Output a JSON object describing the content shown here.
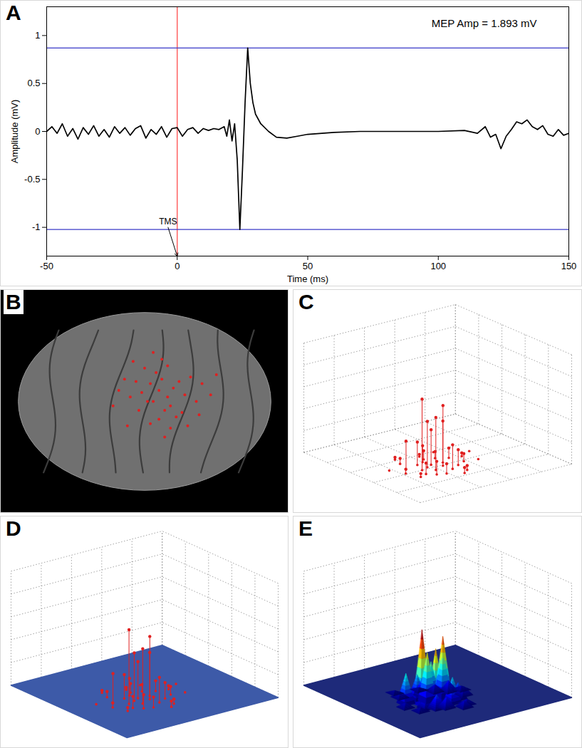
{
  "chart_data": [
    {
      "panel_label": "A",
      "type": "line",
      "title": "MEP Amp = 1.893 mV",
      "x_label": "Time (ms)",
      "y_label": "Amplitude (mV)",
      "x": [
        -50,
        -48,
        -46,
        -44,
        -42,
        -40,
        -38,
        -36,
        -34,
        -32,
        -30,
        -28,
        -26,
        -24,
        -22,
        -20,
        -18,
        -16,
        -14,
        -12,
        -10,
        -8,
        -6,
        -4,
        -2,
        0,
        2,
        4,
        6,
        8,
        10,
        12,
        14,
        16,
        18,
        19,
        20,
        21,
        22,
        23,
        24,
        25,
        26,
        27,
        28,
        29,
        30,
        32,
        35,
        38,
        42,
        46,
        50,
        60,
        70,
        80,
        90,
        100,
        110,
        115,
        118,
        120,
        122,
        124,
        126,
        128,
        130,
        132,
        134,
        136,
        138,
        140,
        142,
        144,
        146,
        148,
        150
      ],
      "values": [
        0,
        0.05,
        -0.02,
        0.08,
        -0.05,
        0.03,
        -0.08,
        0.04,
        -0.03,
        0.06,
        -0.05,
        0.02,
        -0.06,
        0.05,
        -0.02,
        0.04,
        -0.04,
        0.03,
        0.06,
        -0.07,
        0.02,
        -0.03,
        0.05,
        -0.06,
        0.03,
        0.04,
        -0.05,
        0.02,
        0.04,
        -0.02,
        0.03,
        0.01,
        0.03,
        0.02,
        0.05,
        -0.05,
        0.12,
        -0.1,
        0.08,
        -0.3,
        -1.023,
        -0.4,
        0.3,
        0.87,
        0.5,
        0.3,
        0.18,
        0.08,
        0,
        -0.06,
        -0.07,
        -0.05,
        -0.03,
        -0.01,
        0,
        0,
        0,
        0,
        0.01,
        -0.02,
        0.05,
        -0.06,
        -0.03,
        -0.18,
        -0.05,
        0.02,
        0.1,
        0.08,
        0.12,
        0.05,
        0.02,
        0.06,
        -0.03,
        -0.05,
        0.02,
        -0.04,
        -0.02
      ],
      "color": "#000000",
      "xlim": [
        -50,
        150
      ],
      "ylim": [
        -1.3,
        1.3
      ],
      "xticks": [
        -50,
        0,
        50,
        100,
        150
      ],
      "yticks": [
        -1,
        -0.5,
        0,
        0.5,
        1
      ],
      "hlines": {
        "values": [
          0.87,
          -1.023
        ],
        "color": "#3a3ac8"
      },
      "vlines": {
        "values": [
          0
        ],
        "color": "#ff6a6a"
      },
      "annotations": [
        {
          "text": "TMS",
          "x": 0,
          "y": -1.3
        }
      ]
    },
    {
      "panel_label": "B",
      "type": "brain_map",
      "x": [
        5.5,
        5.8,
        5.2,
        6.0,
        5.6,
        5.3,
        5.9,
        6.2,
        4.9,
        5.4,
        5.7,
        6.4,
        5.1,
        4.7,
        6.6,
        5.0,
        6.1,
        5.5,
        4.5,
        6.8,
        5.8,
        4.3,
        6.3,
        5.2,
        7.0,
        4.8,
        5.6,
        6.9,
        4.1,
        7.3,
        5.9,
        4.6,
        6.5,
        5.3,
        3.9,
        7.5,
        5.7,
        4.4
      ],
      "y": [
        5.5,
        5.2,
        5.8,
        5.6,
        6.0,
        5.0,
        4.8,
        5.9,
        5.4,
        6.3,
        4.6,
        5.3,
        5.0,
        5.9,
        6.1,
        6.5,
        4.3,
        4.2,
        5.2,
        5.0,
        6.6,
        6.0,
        4.5,
        4.0,
        5.8,
        4.6,
        6.9,
        4.4,
        5.5,
        5.3,
        3.8,
        6.8,
        3.9,
        7.2,
        4.8,
        6.2,
        3.4,
        3.9
      ],
      "color": "#e02020",
      "xlim": [
        0,
        10
      ],
      "ylim": [
        0,
        10
      ],
      "tick_labels": false
    },
    {
      "panel_label": "C",
      "type": "stem3d",
      "x": [
        3.2,
        3.8,
        4.1,
        4.5,
        3.5,
        4.0,
        4.8,
        3.0,
        2.6,
        5.2,
        4.3,
        3.7,
        4.6,
        5.5,
        2.9,
        3.4,
        4.9,
        5.8,
        2.2,
        6.2,
        3.9,
        4.4,
        5.1,
        2.5,
        6.6,
        1.8,
        7.0,
        3.1,
        4.7,
        5.4
      ],
      "y": [
        4.0,
        3.6,
        4.4,
        3.9,
        4.8,
        5.0,
        4.3,
        3.4,
        4.6,
        3.5,
        5.3,
        4.2,
        3.2,
        4.7,
        5.5,
        3.0,
        5.1,
        3.8,
        4.1,
        4.5,
        2.8,
        5.8,
        2.6,
        3.2,
        3.6,
        5.0,
        4.9,
        6.2,
        2.3,
        5.9
      ],
      "z": [
        6.5,
        4.8,
        3.2,
        5.5,
        2.1,
        1.5,
        3.8,
        1.0,
        2.6,
        1.4,
        0.8,
        4.2,
        2.2,
        0.9,
        0.5,
        1.2,
        0.6,
        0.7,
        0.4,
        0.3,
        0.9,
        0.2,
        0.4,
        0.3,
        0,
        0,
        0,
        0.2,
        0.5,
        0
      ],
      "color": "#e02020",
      "xlim": [
        0,
        10
      ],
      "ylim": [
        0,
        10
      ],
      "zlim": [
        0,
        10
      ],
      "xticks": [
        0,
        2,
        4,
        6,
        8,
        10
      ],
      "yticks": [
        0,
        2,
        4,
        6,
        8,
        10
      ],
      "zticks": [
        0,
        2,
        4,
        6,
        8,
        10
      ],
      "grid": true,
      "tick_labels": false
    },
    {
      "panel_label": "D",
      "type": "stem3d_surface",
      "x": [
        3.2,
        3.8,
        4.1,
        4.5,
        3.5,
        4.0,
        4.8,
        3.0,
        2.6,
        5.2,
        4.3,
        3.7,
        4.6,
        5.5,
        2.9,
        3.4,
        4.9,
        5.8,
        2.2,
        6.2,
        3.9,
        4.4,
        5.1,
        2.5,
        6.6,
        1.8,
        7.0,
        3.1,
        4.7,
        5.4
      ],
      "y": [
        4.0,
        3.6,
        4.4,
        3.9,
        4.8,
        5.0,
        4.3,
        3.4,
        4.6,
        3.5,
        5.3,
        4.2,
        3.2,
        4.7,
        5.5,
        3.0,
        5.1,
        3.8,
        4.1,
        4.5,
        2.8,
        5.8,
        2.6,
        3.2,
        3.6,
        5.0,
        4.9,
        6.2,
        2.3,
        5.9
      ],
      "z": [
        6.5,
        4.8,
        3.2,
        5.5,
        2.1,
        1.5,
        3.8,
        1.0,
        2.6,
        1.4,
        0.8,
        4.2,
        2.2,
        0.9,
        0.5,
        1.2,
        0.6,
        0.7,
        0.4,
        0.3,
        0.9,
        0.2,
        0.4,
        0.3,
        0,
        0,
        0,
        0.2,
        0.5,
        0
      ],
      "color": "#e02020",
      "xlim": [
        0,
        10
      ],
      "ylim": [
        0,
        10
      ],
      "zlim": [
        0,
        10
      ],
      "xticks": [
        0,
        2,
        4,
        6,
        8,
        10
      ],
      "yticks": [
        0,
        2,
        4,
        6,
        8,
        10
      ],
      "zticks": [
        0,
        2,
        4,
        6,
        8,
        10
      ],
      "grid": true,
      "tick_labels": false
    },
    {
      "panel_label": "E",
      "type": "surface3d",
      "x": [
        3.2,
        3.8,
        4.1,
        4.5,
        3.5,
        4.0,
        4.8,
        3.0,
        2.6,
        5.2,
        4.3,
        3.7,
        4.6,
        5.5,
        2.9,
        3.4,
        4.9,
        5.8,
        2.2,
        6.2,
        3.9,
        4.4,
        5.1,
        2.5,
        6.6,
        1.8,
        7.0,
        3.1,
        4.7,
        5.4
      ],
      "y": [
        4.0,
        3.6,
        4.4,
        3.9,
        4.8,
        5.0,
        4.3,
        3.4,
        4.6,
        3.5,
        5.3,
        4.2,
        3.2,
        4.7,
        5.5,
        3.0,
        5.1,
        3.8,
        4.1,
        4.5,
        2.8,
        5.8,
        2.6,
        3.2,
        3.6,
        5.0,
        4.9,
        6.2,
        2.3,
        5.9
      ],
      "z": [
        6.5,
        4.8,
        3.2,
        5.5,
        2.1,
        1.5,
        3.8,
        1.0,
        2.6,
        1.4,
        0.8,
        4.2,
        2.2,
        0.9,
        0.5,
        1.2,
        0.6,
        0.7,
        0.4,
        0.3,
        0.9,
        0.2,
        0.4,
        0.3,
        0,
        0,
        0,
        0.2,
        0.5,
        0
      ],
      "xlim": [
        0,
        10
      ],
      "ylim": [
        0,
        10
      ],
      "zlim": [
        0,
        10
      ],
      "xticks": [
        0,
        2,
        4,
        6,
        8,
        10
      ],
      "yticks": [
        0,
        2,
        4,
        6,
        8,
        10
      ],
      "zticks": [
        0,
        2,
        4,
        6,
        8,
        10
      ],
      "grid": true,
      "tick_labels": false
    }
  ]
}
